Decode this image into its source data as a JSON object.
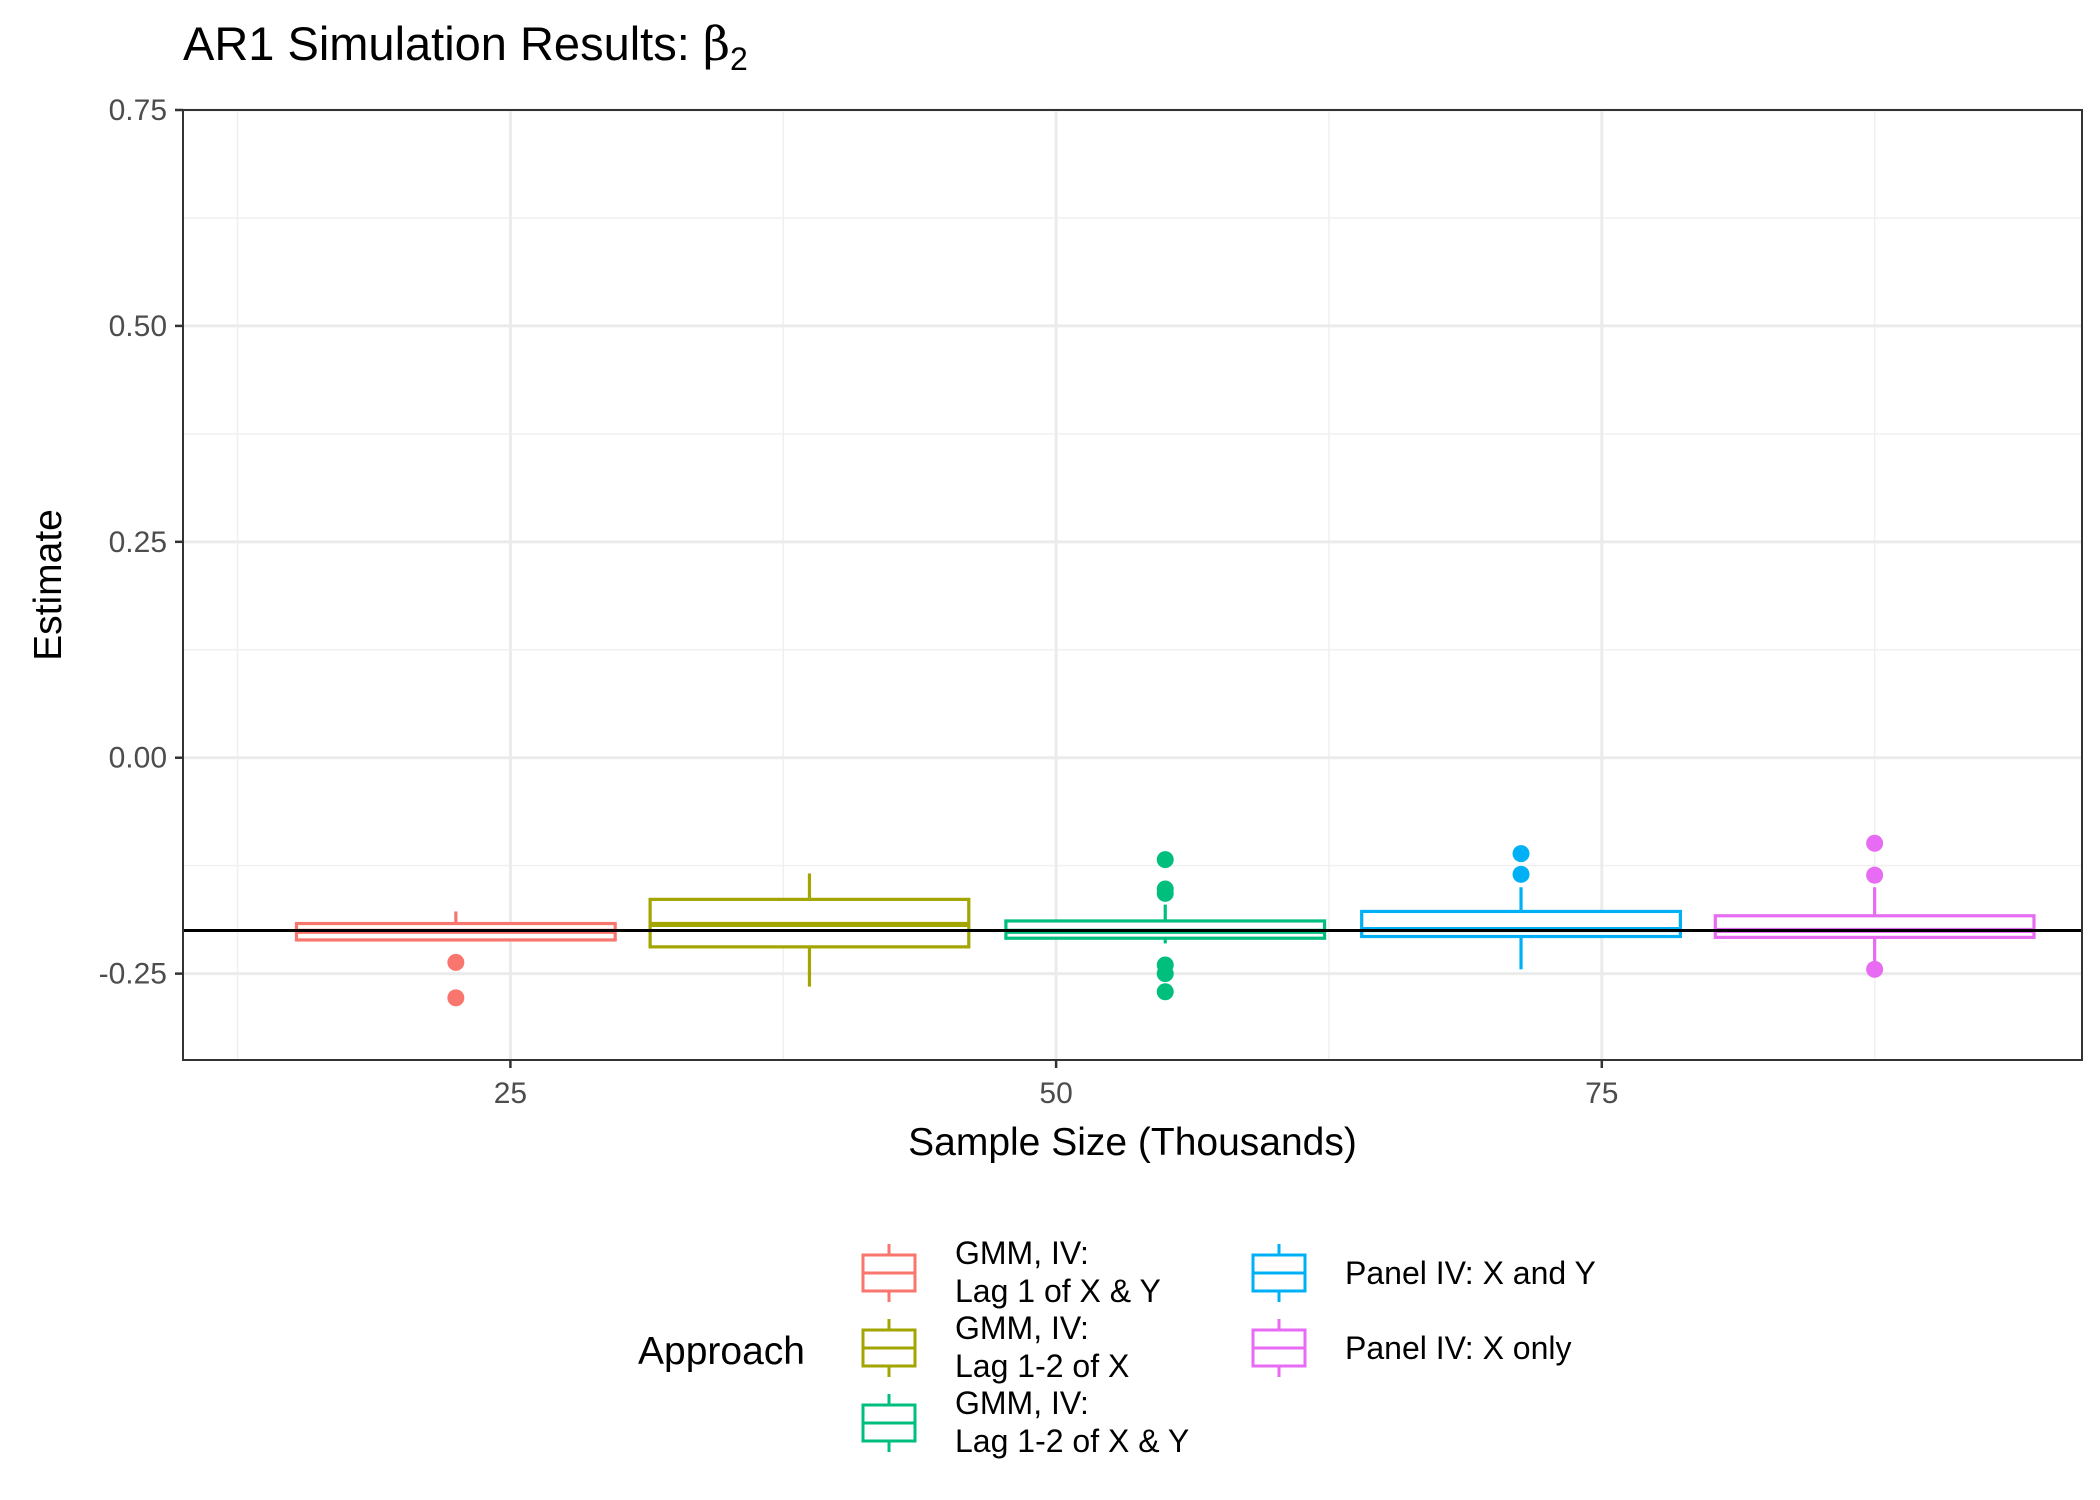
{
  "chart_data": {
    "type": "box",
    "title": "AR1 Simulation Results: ",
    "title_symbol": "β",
    "title_subscript": "2",
    "xlabel": "Sample Size (Thousands)",
    "ylabel": "Estimate",
    "xlim": [
      10,
      97
    ],
    "ylim": [
      -0.35,
      0.75
    ],
    "x_ticks": [
      25,
      50,
      75
    ],
    "x_tick_labels": [
      "25",
      "50",
      "75"
    ],
    "y_ticks": [
      -0.25,
      0,
      0.25,
      0.5,
      0.75
    ],
    "y_tick_labels": [
      "-0.25",
      "0.00",
      "0.25",
      "0.50",
      "0.75"
    ],
    "grid": true,
    "reference_line": -0.2,
    "legend": {
      "title": "Approach",
      "position": "bottom"
    },
    "series": [
      {
        "name": "GMM, IV:\nLag 1 of X & Y",
        "color": "#F8766D",
        "x": 22.5,
        "half_width": 7.3,
        "whisker_low": -0.212,
        "q1": -0.211,
        "median": -0.201,
        "q3": -0.192,
        "whisker_high": -0.178,
        "outliers": [
          -0.237,
          -0.278
        ]
      },
      {
        "name": "GMM, IV:\nLag 1-2 of X",
        "color": "#A3A500",
        "x": 38.7,
        "half_width": 7.3,
        "whisker_low": -0.265,
        "q1": -0.219,
        "median": -0.193,
        "q3": -0.164,
        "whisker_high": -0.134,
        "outliers": []
      },
      {
        "name": "GMM, IV:\nLag 1-2 of X & Y",
        "color": "#00BF7D",
        "x": 55.0,
        "half_width": 7.3,
        "whisker_low": -0.215,
        "q1": -0.209,
        "median": -0.201,
        "q3": -0.189,
        "whisker_high": -0.17,
        "outliers": [
          -0.118,
          -0.152,
          -0.157,
          -0.24,
          -0.25,
          -0.271
        ]
      },
      {
        "name": "Panel IV: X and Y",
        "color": "#00B0F6",
        "x": 71.3,
        "half_width": 7.3,
        "whisker_low": -0.245,
        "q1": -0.207,
        "median": -0.199,
        "q3": -0.178,
        "whisker_high": -0.15,
        "outliers": [
          -0.111,
          -0.135
        ]
      },
      {
        "name": "Panel IV: X only",
        "color": "#E76BF3",
        "x": 87.5,
        "half_width": 7.3,
        "whisker_low": -0.24,
        "q1": -0.208,
        "median": -0.2,
        "q3": -0.183,
        "whisker_high": -0.15,
        "outliers": [
          -0.099,
          -0.136,
          -0.245
        ]
      }
    ]
  }
}
